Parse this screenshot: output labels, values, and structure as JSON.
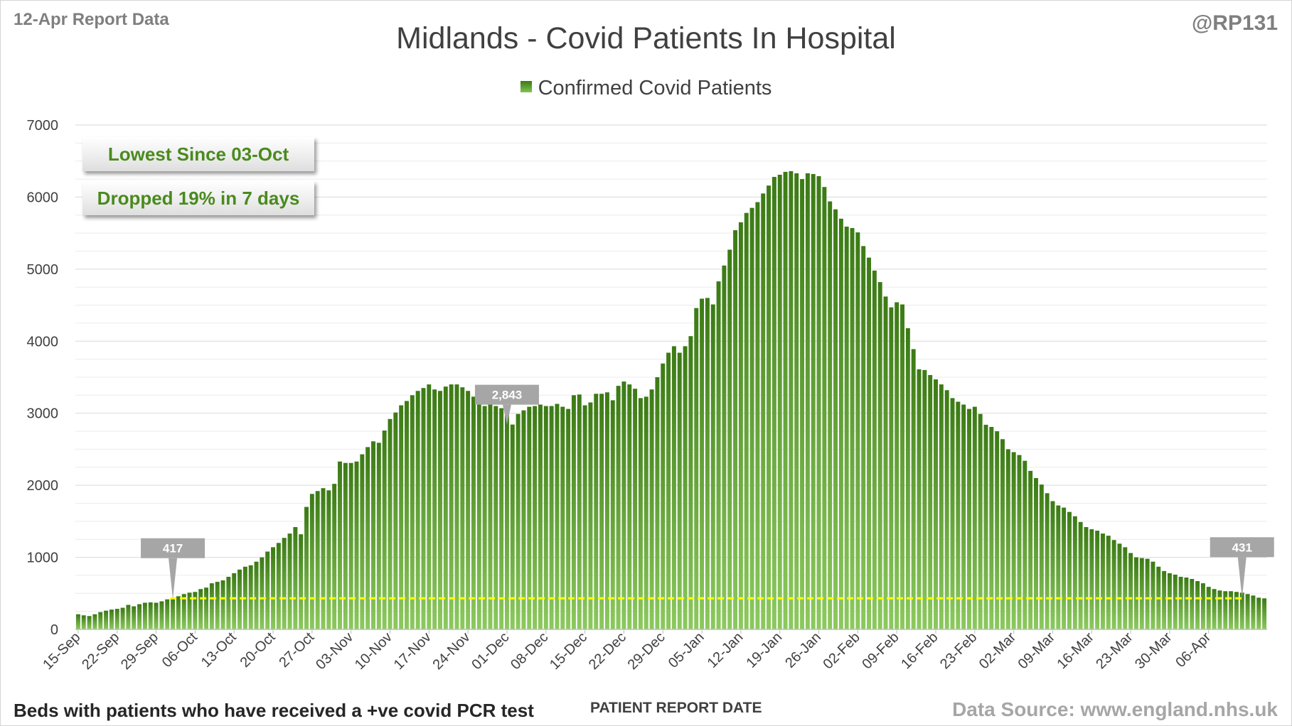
{
  "header": {
    "report_date": "12-Apr Report Data",
    "handle": "@RP131",
    "title": "Midlands - Covid Patients In Hospital"
  },
  "legend": {
    "label": "Confirmed Covid Patients"
  },
  "annotations": {
    "lowest_since": "Lowest Since 03-Oct",
    "dropped": "Dropped 19% in 7 days"
  },
  "footer": {
    "note": "Beds with patients who have received a +ve covid PCR test",
    "x_axis_title": "PATIENT REPORT DATE",
    "source": "Data Source: www.england.nhs.uk"
  },
  "colors": {
    "bar_dark": "#3b7a14",
    "bar_light": "#8cc95e",
    "baseline_line": "#ffff00",
    "callout_fill": "#a6a6a6",
    "annotation_text": "#4a8a1e"
  },
  "chart_data": {
    "type": "bar",
    "title": "Midlands - Covid Patients In Hospital",
    "xlabel": "PATIENT REPORT DATE",
    "ylabel": "",
    "ylim": [
      0,
      7000
    ],
    "yticks": [
      0,
      1000,
      2000,
      3000,
      4000,
      5000,
      6000,
      7000
    ],
    "grid": true,
    "legend_position": "top-center",
    "x_start_date": "15-Sep",
    "x_tick_labels": [
      "15-Sep",
      "22-Sep",
      "29-Sep",
      "06-Oct",
      "13-Oct",
      "20-Oct",
      "27-Oct",
      "03-Nov",
      "10-Nov",
      "17-Nov",
      "24-Nov",
      "01-Dec",
      "08-Dec",
      "15-Dec",
      "22-Dec",
      "29-Dec",
      "05-Jan",
      "12-Jan",
      "19-Jan",
      "26-Jan",
      "02-Feb",
      "09-Feb",
      "16-Feb",
      "23-Feb",
      "02-Mar",
      "09-Mar",
      "16-Mar",
      "23-Mar",
      "30-Mar",
      "06-Apr"
    ],
    "series": [
      {
        "name": "Confirmed Covid Patients",
        "values": [
          210,
          195,
          185,
          210,
          240,
          260,
          275,
          285,
          300,
          340,
          320,
          350,
          370,
          375,
          370,
          390,
          417,
          440,
          460,
          490,
          510,
          520,
          560,
          580,
          640,
          660,
          680,
          730,
          780,
          830,
          870,
          890,
          940,
          1000,
          1080,
          1140,
          1200,
          1270,
          1330,
          1420,
          1320,
          1700,
          1880,
          1920,
          1960,
          1930,
          2020,
          2330,
          2310,
          2310,
          2330,
          2430,
          2530,
          2610,
          2590,
          2760,
          2920,
          3010,
          3110,
          3170,
          3250,
          3310,
          3350,
          3400,
          3330,
          3310,
          3370,
          3400,
          3400,
          3360,
          3310,
          3230,
          3200,
          3100,
          3150,
          3100,
          3070,
          3060,
          2843,
          2990,
          3040,
          3090,
          3100,
          3120,
          3100,
          3100,
          3130,
          3090,
          3060,
          3250,
          3260,
          3110,
          3150,
          3270,
          3270,
          3290,
          3180,
          3380,
          3440,
          3400,
          3340,
          3210,
          3230,
          3330,
          3500,
          3690,
          3840,
          3930,
          3840,
          3930,
          4070,
          4460,
          4590,
          4600,
          4510,
          4830,
          5050,
          5270,
          5540,
          5650,
          5780,
          5850,
          5930,
          6050,
          6160,
          6280,
          6310,
          6350,
          6360,
          6330,
          6250,
          6330,
          6320,
          6290,
          6140,
          5940,
          5830,
          5700,
          5590,
          5570,
          5510,
          5320,
          5160,
          4980,
          4820,
          4620,
          4470,
          4540,
          4510,
          4180,
          3890,
          3610,
          3600,
          3530,
          3470,
          3400,
          3320,
          3210,
          3160,
          3120,
          3060,
          3090,
          2990,
          2840,
          2810,
          2750,
          2640,
          2500,
          2460,
          2420,
          2340,
          2200,
          2100,
          2010,
          1890,
          1780,
          1720,
          1690,
          1630,
          1570,
          1490,
          1420,
          1390,
          1370,
          1330,
          1300,
          1240,
          1190,
          1140,
          1060,
          1000,
          990,
          980,
          940,
          870,
          810,
          780,
          760,
          730,
          720,
          700,
          670,
          640,
          590,
          560,
          540,
          530,
          530,
          520,
          510,
          490,
          470,
          440,
          431
        ]
      }
    ],
    "callouts": [
      {
        "label": "417",
        "day": "02-Oct",
        "value": 417
      },
      {
        "label": "2,843",
        "day": "01-Dec",
        "value": 2843
      },
      {
        "label": "431",
        "day": "12-Apr",
        "value": 431
      }
    ],
    "reference_line": {
      "value": 431,
      "from_day": "02-Oct",
      "to_day": "12-Apr",
      "style": "dashed",
      "color": "#ffff00"
    }
  }
}
